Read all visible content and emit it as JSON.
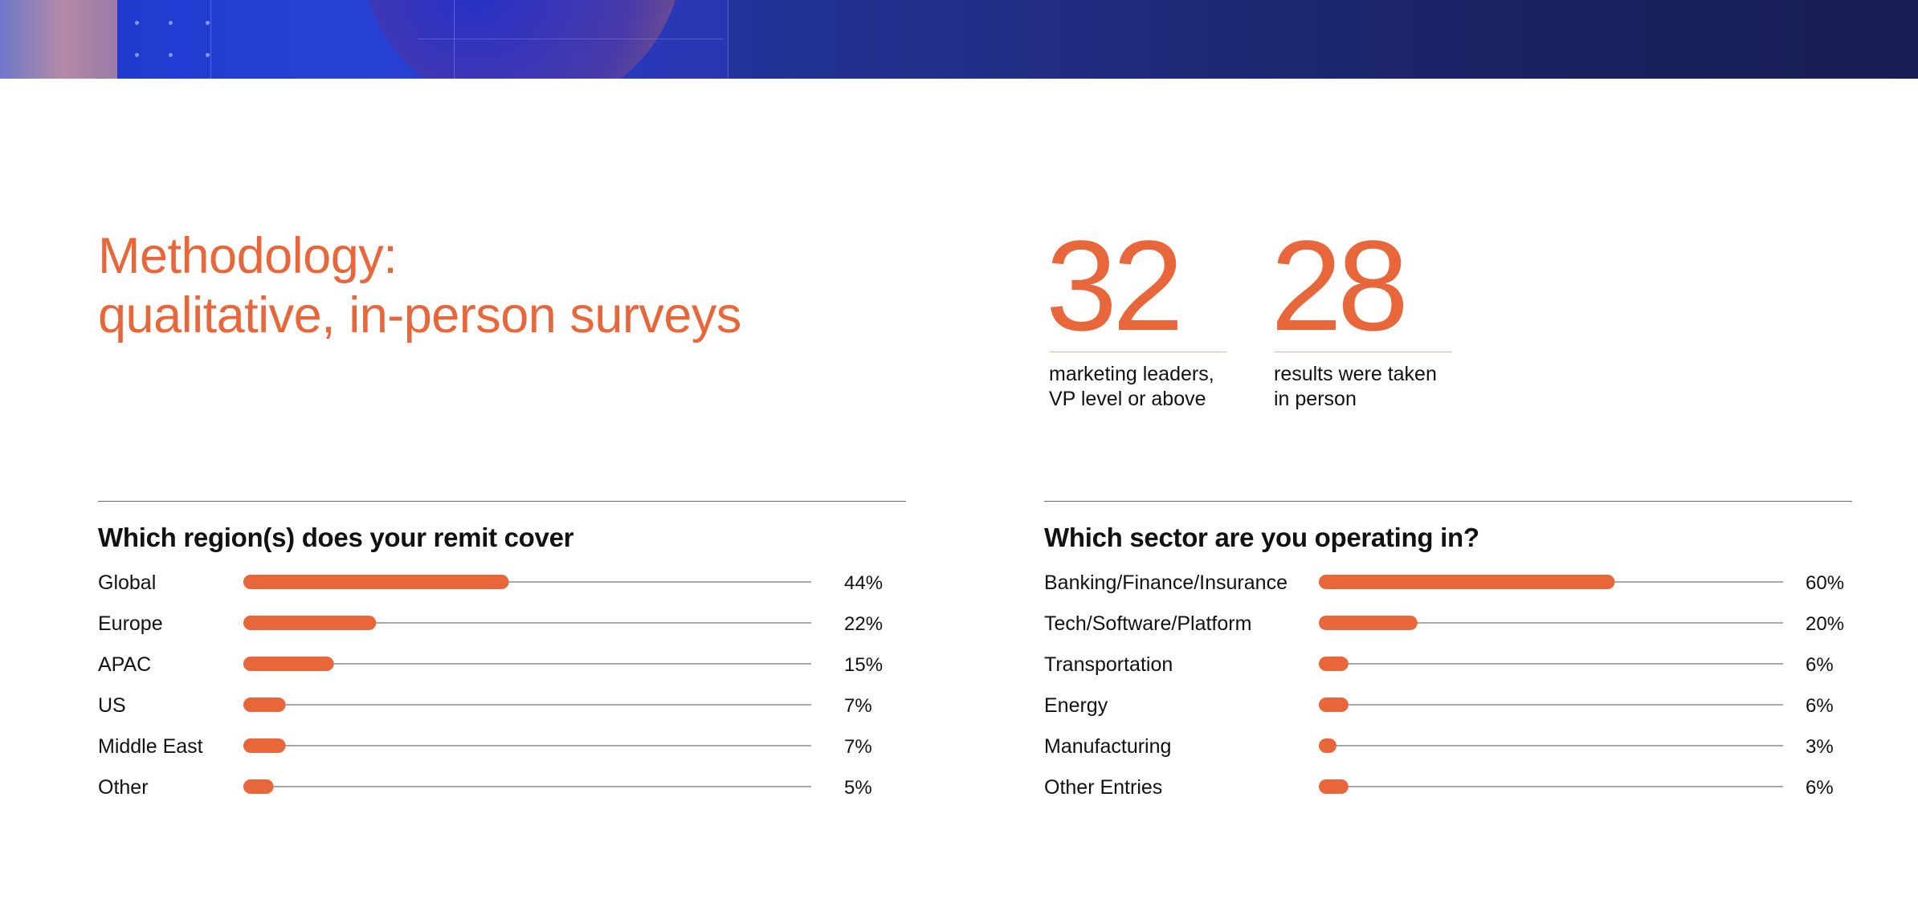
{
  "header": {
    "title_line1": "Methodology:",
    "title_line2": "qualitative, in-person surveys"
  },
  "stats": [
    {
      "value": "32",
      "caption_line1": "marketing leaders,",
      "caption_line2": "VP level or above"
    },
    {
      "value": "28",
      "caption_line1": "results were taken",
      "caption_line2": "in person"
    }
  ],
  "colors": {
    "accent": "#e8673a",
    "track": "#8c8c8c",
    "text": "#111111",
    "banner": "#1b2466"
  },
  "chart_data": [
    {
      "type": "bar",
      "title": "Which region(s) does your remit cover",
      "categories": [
        "Global",
        "Europe",
        "APAC",
        "US",
        "Middle East",
        "Other"
      ],
      "values": [
        44,
        22,
        15,
        7,
        7,
        5
      ],
      "value_labels": [
        "44%",
        "22%",
        "15%",
        "7%",
        "7%",
        "5%"
      ],
      "xlim": [
        0,
        100
      ],
      "grid": false
    },
    {
      "type": "bar",
      "title": "Which sector are you operating in?",
      "categories": [
        "Banking/Finance/Insurance",
        "Tech/Software/Platform",
        "Transportation",
        "Energy",
        "Manufacturing",
        "Other Entries"
      ],
      "values": [
        60,
        20,
        6,
        6,
        3,
        6
      ],
      "value_labels": [
        "60%",
        "20%",
        "6%",
        "6%",
        "3%",
        "6%"
      ],
      "xlim": [
        0,
        100
      ],
      "grid": false
    }
  ]
}
